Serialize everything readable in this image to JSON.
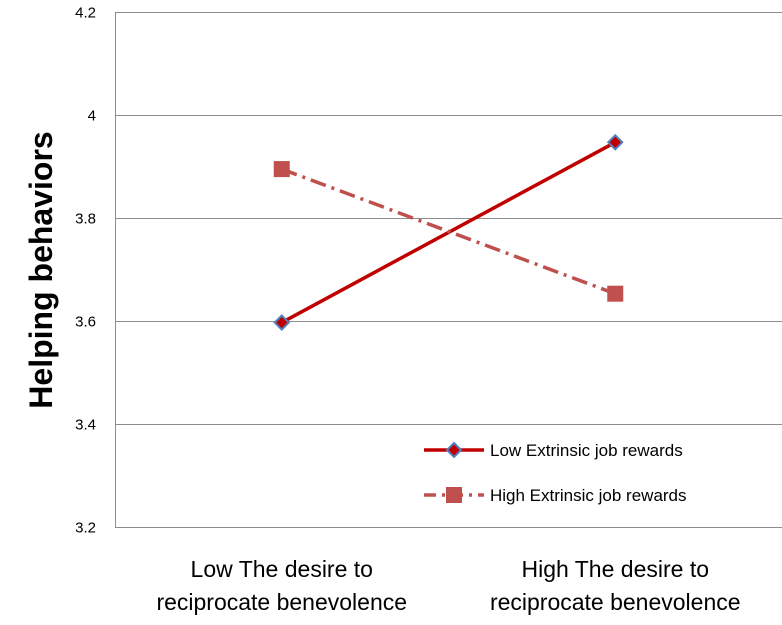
{
  "chart_data": {
    "type": "line",
    "title": "",
    "xlabel": "",
    "ylabel": "Helping behaviors",
    "categories": [
      [
        "Low The desire to",
        "reciprocate benevolence"
      ],
      [
        "High The desire to",
        "reciprocate benevolence"
      ]
    ],
    "ylim": [
      3.2,
      4.2
    ],
    "yticks": [
      "3.2",
      "3.4",
      "3.6",
      "3.8",
      "4",
      "4.2"
    ],
    "grid": true,
    "legend_position": "bottom-right",
    "series": [
      {
        "name": "Low Extrinsic job rewards",
        "values": [
          3.597,
          3.947
        ],
        "color": "#C00000",
        "line_style": "solid",
        "marker": "diamond",
        "marker_edge": "#4F81BD"
      },
      {
        "name": "High Extrinsic job rewards",
        "values": [
          3.895,
          3.653
        ],
        "color": "#C0504D",
        "line_style": "dash-dot",
        "marker": "square"
      }
    ]
  }
}
